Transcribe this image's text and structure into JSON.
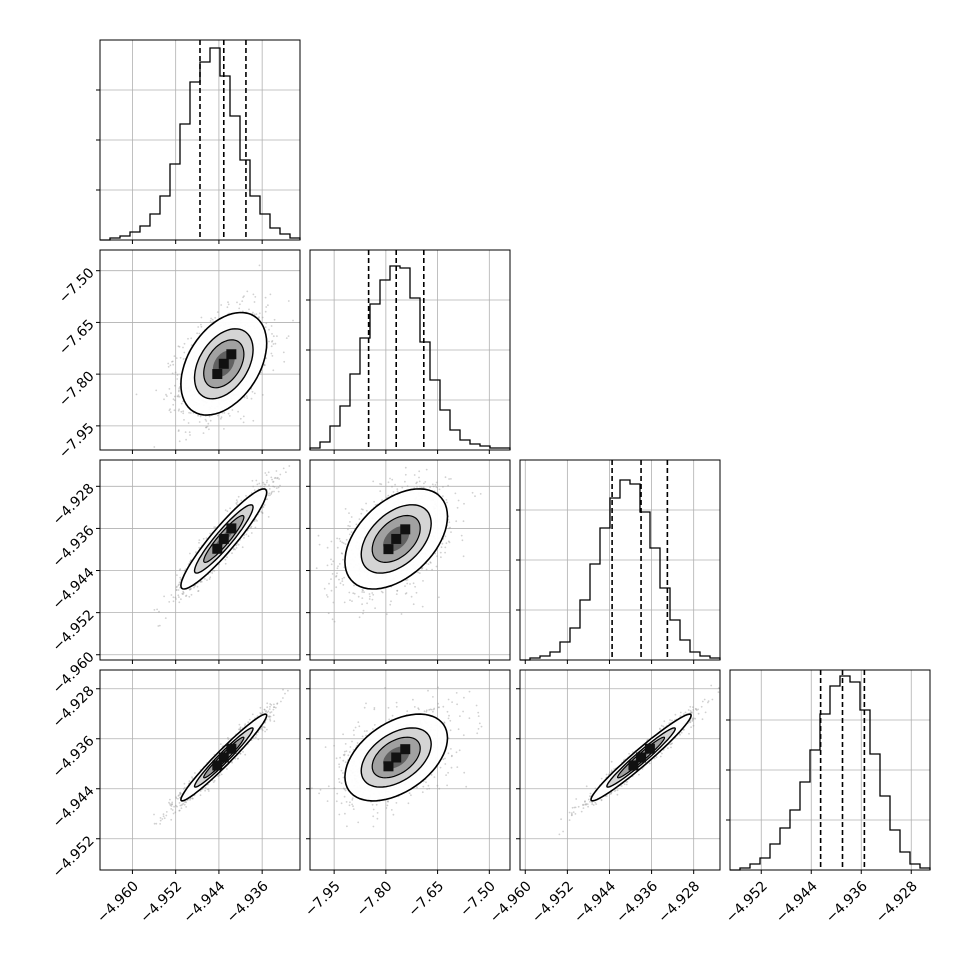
{
  "colors": {
    "line": "#000000",
    "grid": "#b0b0b0",
    "scatter": "#9a9a9a",
    "background": "#ffffff"
  },
  "chart_data": {
    "type": "corner",
    "grid": true,
    "title": "",
    "params": [
      {
        "xlim": [
          -4.966,
          -4.929
        ],
        "ticks": [
          -4.96,
          -4.952,
          -4.944,
          -4.936
        ],
        "tick_labels": [
          "−4.960",
          "−4.952",
          "−4.944",
          "−4.936"
        ],
        "quantiles": [
          -4.9475,
          -4.9431,
          -4.939
        ],
        "hist": [
          0.0,
          0.01,
          0.02,
          0.04,
          0.07,
          0.13,
          0.22,
          0.38,
          0.58,
          0.79,
          0.89,
          0.96,
          0.82,
          0.62,
          0.4,
          0.22,
          0.13,
          0.06,
          0.03,
          0.01
        ]
      },
      {
        "xlim": [
          -8.02,
          -7.44
        ],
        "ticks": [
          -7.95,
          -7.8,
          -7.65,
          -7.5
        ],
        "tick_labels": [
          "−7.95",
          "−7.80",
          "−7.65",
          "−7.50"
        ],
        "quantiles": [
          -7.85,
          -7.77,
          -7.69
        ],
        "hist": [
          0.01,
          0.04,
          0.12,
          0.22,
          0.38,
          0.56,
          0.73,
          0.85,
          0.92,
          0.91,
          0.76,
          0.54,
          0.35,
          0.2,
          0.1,
          0.05,
          0.03,
          0.02,
          0.01,
          0.01
        ]
      },
      {
        "xlim": [
          -4.961,
          -4.923
        ],
        "ticks": [
          -4.96,
          -4.952,
          -4.944,
          -4.936,
          -4.928
        ],
        "tick_labels": [
          "−4.960",
          "−4.952",
          "−4.944",
          "−4.936",
          "−4.928"
        ],
        "quantiles": [
          -4.9435,
          -4.938,
          -4.933
        ],
        "hist": [
          0.0,
          0.01,
          0.02,
          0.04,
          0.09,
          0.16,
          0.3,
          0.48,
          0.66,
          0.81,
          0.9,
          0.88,
          0.74,
          0.56,
          0.36,
          0.2,
          0.1,
          0.04,
          0.02,
          0.01
        ]
      },
      {
        "xlim": [
          -4.957,
          -4.925
        ],
        "ticks": [
          -4.952,
          -4.944,
          -4.936,
          -4.928
        ],
        "tick_labels": [
          "−4.952",
          "−4.944",
          "−4.936",
          "−4.928"
        ],
        "quantiles": [
          -4.9425,
          -4.939,
          -4.9355
        ],
        "hist": [
          0.0,
          0.01,
          0.03,
          0.06,
          0.13,
          0.21,
          0.3,
          0.44,
          0.6,
          0.78,
          0.92,
          0.97,
          0.94,
          0.8,
          0.58,
          0.37,
          0.2,
          0.09,
          0.03,
          0.01
        ]
      }
    ],
    "pairs": [
      {
        "row": 1,
        "col": 0,
        "mean": [
          -4.9431,
          -7.77
        ],
        "std": [
          0.004,
          0.075
        ],
        "corr": 0.4
      },
      {
        "row": 2,
        "col": 0,
        "mean": [
          -4.9431,
          -4.938
        ],
        "std": [
          0.004,
          0.0048
        ],
        "corr": 0.93
      },
      {
        "row": 2,
        "col": 1,
        "mean": [
          -7.77,
          -4.938
        ],
        "std": [
          0.075,
          0.0048
        ],
        "corr": 0.45
      },
      {
        "row": 3,
        "col": 0,
        "mean": [
          -4.9431,
          -4.939
        ],
        "std": [
          0.004,
          0.0035
        ],
        "corr": 0.97
      },
      {
        "row": 3,
        "col": 1,
        "mean": [
          -7.77,
          -4.939
        ],
        "std": [
          0.075,
          0.0035
        ],
        "corr": 0.45
      },
      {
        "row": 3,
        "col": 2,
        "mean": [
          -4.938,
          -4.939
        ],
        "std": [
          0.0048,
          0.0035
        ],
        "corr": 0.97
      }
    ]
  }
}
